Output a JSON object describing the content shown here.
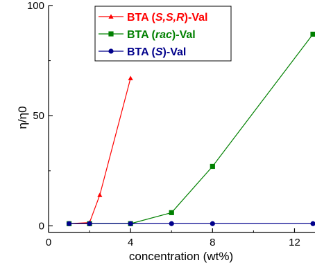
{
  "chart_data": {
    "type": "line",
    "xlabel": "concentration (wt%)",
    "ylabel": "η/η0",
    "xlim": [
      0,
      13
    ],
    "ylim": [
      -3,
      100
    ],
    "xticks": [
      0,
      4,
      8,
      12
    ],
    "yticks": [
      0,
      50,
      100
    ],
    "grid": false,
    "legend_position": "top-center",
    "series": [
      {
        "name": "BTA (S,S,R)-Val",
        "legend": {
          "prefix": "BTA (",
          "italic": "S,S,R",
          "suffix": ")-Val"
        },
        "color": "#ff0000",
        "marker": "triangle",
        "x": [
          1,
          2,
          2.5,
          4
        ],
        "y": [
          1,
          1.5,
          14,
          67
        ]
      },
      {
        "name": "BTA (rac)-Val",
        "legend": {
          "prefix": "BTA (",
          "italic": "rac",
          "suffix": ")-Val"
        },
        "color": "#008000",
        "marker": "square",
        "x": [
          1,
          2,
          4,
          6,
          8,
          12.9
        ],
        "y": [
          1,
          1,
          1,
          6,
          27,
          87
        ]
      },
      {
        "name": "BTA (S)-Val",
        "legend": {
          "prefix": "BTA (",
          "italic": "S",
          "suffix": ")-Val"
        },
        "color": "#00008b",
        "marker": "circle",
        "x": [
          1,
          2,
          4,
          6,
          8,
          12.9
        ],
        "y": [
          1,
          1,
          1,
          1,
          1,
          1
        ]
      }
    ]
  }
}
